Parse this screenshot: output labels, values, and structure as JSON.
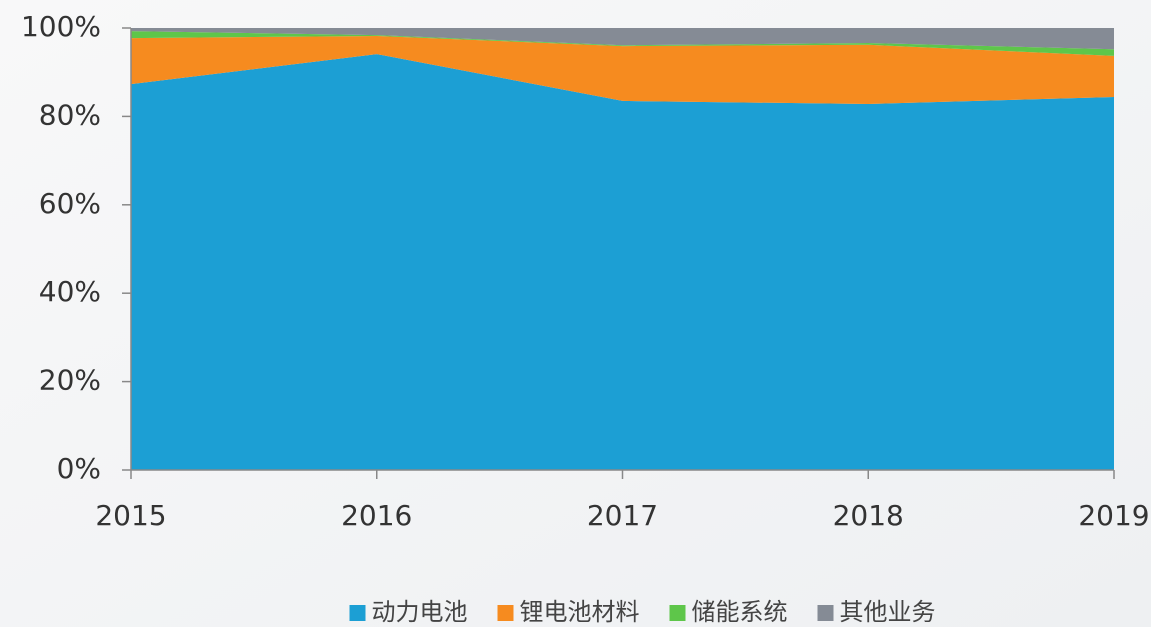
{
  "chart_data": {
    "type": "area",
    "stacked": true,
    "categories": [
      "2015",
      "2016",
      "2017",
      "2018",
      "2019"
    ],
    "series": [
      {
        "name": "动力电池",
        "color": "#1c9fd4",
        "values": [
          87.3,
          94.1,
          83.5,
          82.8,
          84.4
        ]
      },
      {
        "name": "锂电池材料",
        "color": "#f68b1f",
        "values": [
          10.4,
          4.1,
          12.4,
          13.4,
          9.3
        ]
      },
      {
        "name": "储能系统",
        "color": "#5ec64a",
        "values": [
          1.6,
          0.2,
          0.2,
          0.4,
          1.5
        ]
      },
      {
        "name": "其他业务",
        "color": "#858b95",
        "values": [
          0.7,
          1.6,
          3.9,
          3.4,
          4.8
        ]
      }
    ],
    "ylim": [
      0,
      100
    ],
    "yticks": [
      {
        "value": 0,
        "label": "0%"
      },
      {
        "value": 20,
        "label": "20%"
      },
      {
        "value": 40,
        "label": "40%"
      },
      {
        "value": 60,
        "label": "60%"
      },
      {
        "value": 80,
        "label": "80%"
      },
      {
        "value": 100,
        "label": "100%"
      }
    ],
    "legend": "bottom"
  }
}
